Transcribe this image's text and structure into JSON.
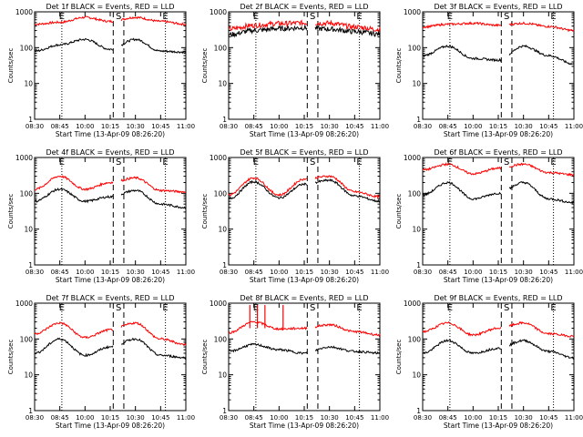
{
  "page": {
    "background": "#ffffff",
    "ink": "#000000"
  },
  "panels": [
    {
      "title": "Det 1f BLACK = Events, RED = LLD"
    },
    {
      "title": "Det 2f BLACK = Events, RED = LLD"
    },
    {
      "title": "Det 3f BLACK = Events, RED = LLD"
    },
    {
      "title": "Det 4f BLACK = Events, RED = LLD"
    },
    {
      "title": "Det 5f BLACK = Events, RED = LLD"
    },
    {
      "title": "Det 6f BLACK = Events, RED = LLD"
    },
    {
      "title": "Det 7f BLACK = Events, RED = LLD"
    },
    {
      "title": "Det 8f BLACK = Events, RED = LLD"
    },
    {
      "title": "Det 9f BLACK = Events, RED = LLD"
    }
  ],
  "common": {
    "xlabel": "Start Time (13-Apr-09 08:26:20)",
    "ylabel": "Counts/sec",
    "xticks": [
      "08:30",
      "08:45",
      "10:00",
      "10:15",
      "10:30",
      "10:45",
      "11:00"
    ],
    "yticks": [
      "1",
      "10",
      "100",
      "1000"
    ],
    "markers": [
      {
        "label": "E",
        "style": "dotted"
      },
      {
        "label": "S",
        "style": "dashed"
      },
      {
        "label": "E",
        "style": "dotted"
      }
    ]
  },
  "chart_data": [
    {
      "type": "line",
      "title": "Det 1f BLACK = Events, RED = LLD",
      "xlabel": "Start Time (13-Apr-09 08:26:20)",
      "ylabel": "Counts/sec",
      "ylim": [
        1,
        1000
      ],
      "yscale": "log",
      "x": [
        "08:30",
        "08:45",
        "10:00",
        "10:15",
        "10:30",
        "10:45",
        "11:00"
      ],
      "series": [
        {
          "color": "#ff0000",
          "values": [
            450,
            510,
            700,
            540,
            700,
            540,
            450
          ]
        },
        {
          "color": "#000000",
          "values": [
            80,
            120,
            170,
            90,
            170,
            80,
            75
          ]
        }
      ]
    },
    {
      "type": "line",
      "title": "Det 2f BLACK = Events, RED = LLD",
      "xlabel": "Start Time (13-Apr-09 08:26:20)",
      "ylabel": "Counts/sec",
      "ylim": [
        1,
        1000
      ],
      "yscale": "log",
      "x": [
        "08:30",
        "08:45",
        "10:00",
        "10:15",
        "10:30",
        "10:45",
        "11:00"
      ],
      "series": [
        {
          "color": "#ff0000",
          "values": [
            330,
            420,
            470,
            490,
            480,
            380,
            320
          ]
        },
        {
          "color": "#000000",
          "values": [
            230,
            300,
            340,
            360,
            330,
            280,
            240
          ]
        }
      ]
    },
    {
      "type": "line",
      "title": "Det 3f BLACK = Events, RED = LLD",
      "xlabel": "Start Time (13-Apr-09 08:26:20)",
      "ylabel": "Counts/sec",
      "ylim": [
        1,
        1000
      ],
      "yscale": "log",
      "x": [
        "08:30",
        "08:45",
        "10:00",
        "10:15",
        "10:30",
        "10:45",
        "11:00"
      ],
      "series": [
        {
          "color": "#ff0000",
          "values": [
            380,
            450,
            480,
            420,
            480,
            390,
            300
          ]
        },
        {
          "color": "#000000",
          "values": [
            60,
            110,
            50,
            45,
            110,
            60,
            35
          ]
        }
      ]
    },
    {
      "type": "line",
      "title": "Det 4f BLACK = Events, RED = LLD",
      "xlabel": "Start Time (13-Apr-09 08:26:20)",
      "ylabel": "Counts/sec",
      "ylim": [
        1,
        1000
      ],
      "yscale": "log",
      "x": [
        "08:30",
        "08:45",
        "10:00",
        "10:15",
        "10:30",
        "10:45",
        "11:00"
      ],
      "series": [
        {
          "color": "#ff0000",
          "values": [
            130,
            300,
            130,
            200,
            270,
            120,
            110
          ]
        },
        {
          "color": "#000000",
          "values": [
            60,
            130,
            60,
            80,
            120,
            50,
            40
          ]
        }
      ]
    },
    {
      "type": "line",
      "title": "Det 5f BLACK = Events, RED = LLD",
      "xlabel": "Start Time (13-Apr-09 08:26:20)",
      "ylabel": "Counts/sec",
      "ylim": [
        1,
        1000
      ],
      "yscale": "log",
      "x": [
        "08:30",
        "08:45",
        "10:00",
        "10:15",
        "10:30",
        "10:45",
        "11:00"
      ],
      "series": [
        {
          "color": "#ff0000",
          "values": [
            90,
            270,
            90,
            250,
            300,
            110,
            80
          ]
        },
        {
          "color": "#000000",
          "values": [
            70,
            210,
            75,
            180,
            230,
            85,
            60
          ]
        }
      ]
    },
    {
      "type": "line",
      "title": "Det 6f BLACK = Events, RED = LLD",
      "xlabel": "Start Time (13-Apr-09 08:26:20)",
      "ylabel": "Counts/sec",
      "ylim": [
        1,
        1000
      ],
      "yscale": "log",
      "x": [
        "08:30",
        "08:45",
        "10:00",
        "10:15",
        "10:30",
        "10:45",
        "11:00"
      ],
      "series": [
        {
          "color": "#ff0000",
          "values": [
            450,
            650,
            350,
            500,
            650,
            380,
            330
          ]
        },
        {
          "color": "#000000",
          "values": [
            90,
            200,
            70,
            100,
            200,
            70,
            55
          ]
        }
      ]
    },
    {
      "type": "line",
      "title": "Det 7f BLACK = Events, RED = LLD",
      "xlabel": "Start Time (13-Apr-09 08:26:20)",
      "ylabel": "Counts/sec",
      "ylim": [
        1,
        1000
      ],
      "yscale": "log",
      "x": [
        "08:30",
        "08:45",
        "10:00",
        "10:15",
        "10:30",
        "10:45",
        "11:00"
      ],
      "series": [
        {
          "color": "#ff0000",
          "values": [
            140,
            280,
            110,
            180,
            280,
            100,
            70
          ]
        },
        {
          "color": "#000000",
          "values": [
            40,
            100,
            35,
            60,
            100,
            35,
            30
          ]
        }
      ]
    },
    {
      "type": "line",
      "title": "Det 8f BLACK = Events, RED = LLD",
      "xlabel": "Start Time (13-Apr-09 08:26:20)",
      "ylabel": "Counts/sec",
      "ylim": [
        1,
        1000
      ],
      "yscale": "log",
      "x": [
        "08:30",
        "08:45",
        "10:00",
        "10:15",
        "10:30",
        "10:45",
        "11:00"
      ],
      "series": [
        {
          "color": "#ff0000",
          "values": [
            150,
            300,
            190,
            200,
            250,
            160,
            130
          ]
        },
        {
          "color": "#000000",
          "values": [
            45,
            70,
            50,
            40,
            60,
            45,
            40
          ]
        }
      ]
    },
    {
      "type": "line",
      "title": "Det 9f BLACK = Events, RED = LLD",
      "xlabel": "Start Time (13-Apr-09 08:26:20)",
      "ylabel": "Counts/sec",
      "ylim": [
        1,
        1000
      ],
      "yscale": "log",
      "x": [
        "08:30",
        "08:45",
        "10:00",
        "10:15",
        "10:30",
        "10:45",
        "11:00"
      ],
      "series": [
        {
          "color": "#ff0000",
          "values": [
            160,
            280,
            130,
            200,
            280,
            140,
            120
          ]
        },
        {
          "color": "#000000",
          "values": [
            40,
            90,
            40,
            55,
            90,
            45,
            30
          ]
        }
      ]
    }
  ]
}
